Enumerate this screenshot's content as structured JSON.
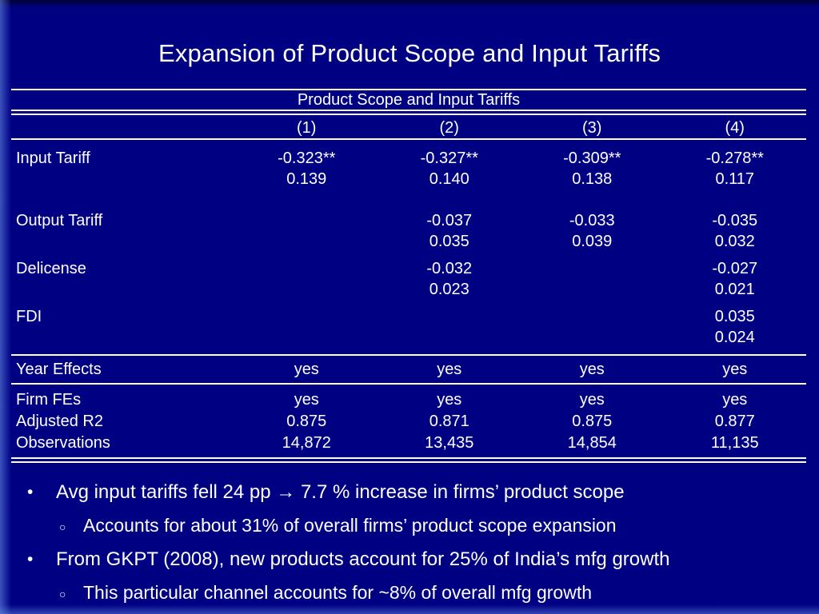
{
  "colors": {
    "background": "#000083",
    "text": "#ffffff"
  },
  "slide": {
    "title": "Expansion of Product Scope and Input Tariffs",
    "table": {
      "header": "Product Scope and Input Tariffs",
      "columns": [
        "(1)",
        "(2)",
        "(3)",
        "(4)"
      ],
      "rows": [
        {
          "label": "Input Tariff",
          "coef": [
            "-0.323**",
            "-0.327**",
            "-0.309**",
            "-0.278**"
          ],
          "se": [
            "0.139",
            "0.140",
            "0.138",
            "0.117"
          ]
        },
        {
          "label": "Output Tariff",
          "coef": [
            "",
            "-0.037",
            "-0.033",
            "-0.035"
          ],
          "se": [
            "",
            "0.035",
            "0.039",
            "0.032"
          ]
        },
        {
          "label": "Delicense",
          "coef": [
            "",
            "-0.032",
            "",
            "-0.027"
          ],
          "se": [
            "",
            "0.023",
            "",
            "0.021"
          ]
        },
        {
          "label": "FDI",
          "coef": [
            "",
            "",
            "",
            "0.035"
          ],
          "se": [
            "",
            "",
            "",
            "0.024"
          ]
        }
      ],
      "summary": [
        {
          "label": "Year Effects",
          "values": [
            "yes",
            "yes",
            "yes",
            "yes"
          ]
        },
        {
          "label": "Firm FEs",
          "values": [
            "yes",
            "yes",
            "yes",
            "yes"
          ]
        },
        {
          "label": "Adjusted R2",
          "values": [
            "0.875",
            "0.871",
            "0.875",
            "0.877"
          ]
        },
        {
          "label": "Observations",
          "values": [
            "14,872",
            "13,435",
            "14,854",
            "11,135"
          ]
        }
      ]
    },
    "bullets": [
      {
        "marker": "•",
        "text": "Avg input tariffs fell 24 pp → 7.7 % increase in firms’ product scope"
      },
      {
        "marker": "○",
        "text": "Accounts for about 31% of overall firms’ product scope expansion"
      },
      {
        "marker": "•",
        "text": "From GKPT (2008), new products account for 25% of India’s mfg growth"
      },
      {
        "marker": "○",
        "text": "This particular channel accounts for ~8% of overall mfg growth"
      }
    ]
  }
}
